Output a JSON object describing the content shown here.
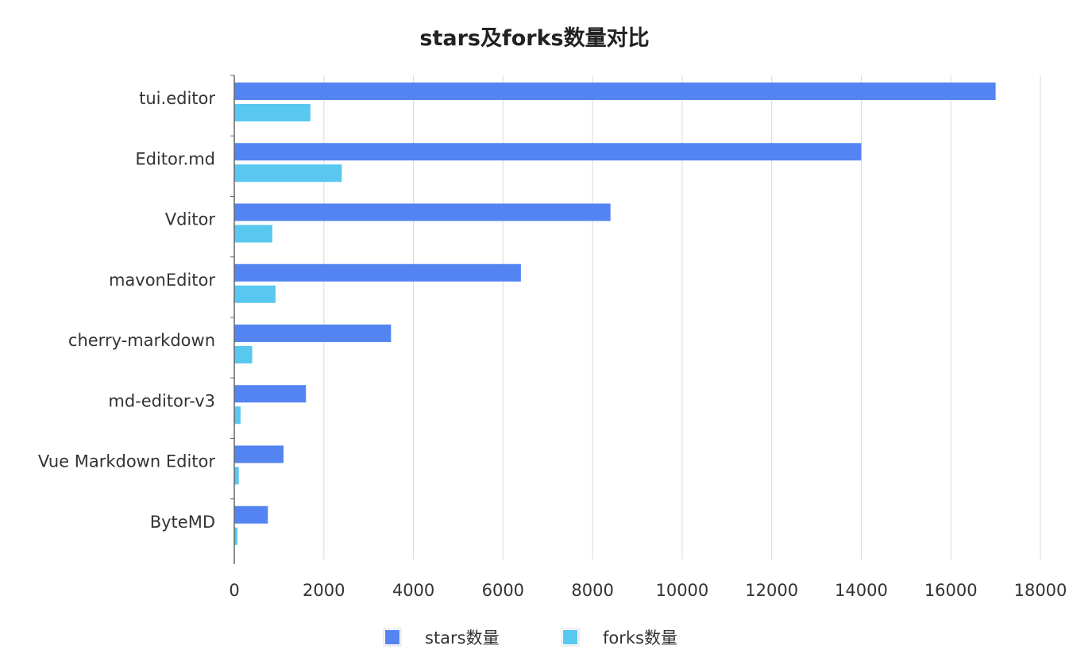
{
  "chart_data": {
    "type": "bar",
    "orientation": "horizontal",
    "title": "stars及forks数量对比",
    "categories": [
      "tui.editor",
      "Editor.md",
      "Vditor",
      "mavonEditor",
      "cherry-markdown",
      "md-editor-v3",
      "Vue Markdown Editor",
      "ByteMD"
    ],
    "series": [
      {
        "name": "stars数量",
        "color": "#5484F2",
        "values": [
          17000,
          14000,
          8400,
          6400,
          3500,
          1600,
          1100,
          750
        ]
      },
      {
        "name": "forks数量",
        "color": "#58C8F0",
        "values": [
          1700,
          2400,
          850,
          920,
          400,
          140,
          100,
          70
        ]
      }
    ],
    "xlim": [
      0,
      18000
    ],
    "xticks": [
      "0",
      "2000",
      "4000",
      "6000",
      "8000",
      "10000",
      "12000",
      "14000",
      "16000",
      "18000"
    ],
    "grid": "vertical",
    "legend_position": "bottom-center",
    "xlabel": "",
    "ylabel": ""
  }
}
